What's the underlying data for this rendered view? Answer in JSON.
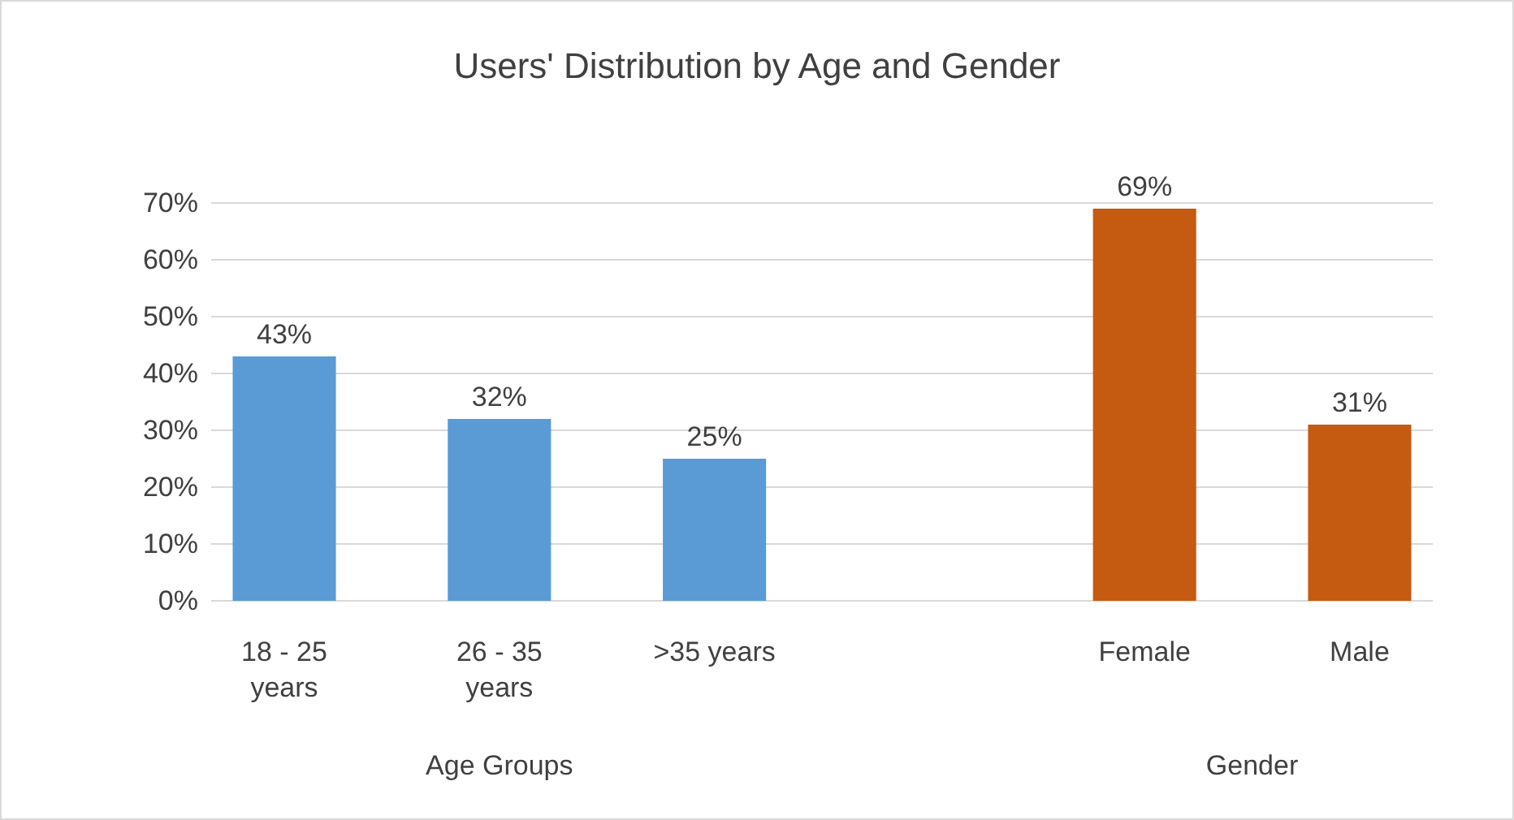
{
  "chart_data": {
    "type": "bar",
    "title": "Users' Distribution by Age and Gender",
    "categories": [
      "18 - 25 years",
      "26 - 35 years",
      ">35 years",
      null,
      "Female",
      "Male"
    ],
    "values": [
      43,
      32,
      25,
      null,
      69,
      31
    ],
    "colors": [
      "#5b9bd5",
      "#5b9bd5",
      "#5b9bd5",
      null,
      "#c55a11",
      "#c55a11"
    ],
    "ylim": [
      0,
      70
    ],
    "yticks": [
      {
        "value": 0,
        "label": "0%"
      },
      {
        "value": 10,
        "label": "10%"
      },
      {
        "value": 20,
        "label": "20%"
      },
      {
        "value": 30,
        "label": "30%"
      },
      {
        "value": 40,
        "label": "40%"
      },
      {
        "value": 50,
        "label": "50%"
      },
      {
        "value": 60,
        "label": "60%"
      },
      {
        "value": 70,
        "label": "70%"
      }
    ],
    "value_labels": [
      "43%",
      "32%",
      "25%",
      null,
      "69%",
      "31%"
    ],
    "annotations": [
      "Age Groups",
      "Gender"
    ],
    "grid": "y"
  }
}
